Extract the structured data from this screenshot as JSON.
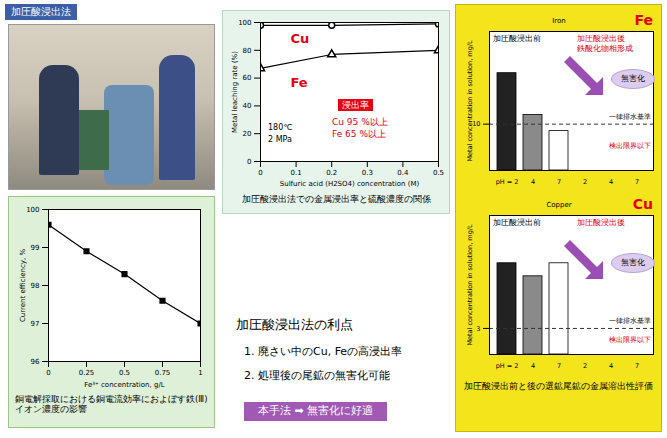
{
  "slide": {
    "title": "加圧酸浸出法",
    "advantages": {
      "title": "加圧酸浸出法の利点",
      "items": [
        "1. 廃さい中のCu, Feの高浸出率",
        "2. 処理後の尾鉱の無害化可能"
      ],
      "conclusion": "本手法 ➡ 無害化に好適"
    },
    "right_caption": "加圧酸浸出前と後の選鉱尾鉱の金属溶出性評価"
  },
  "chart_data": [
    {
      "type": "line",
      "caption": "加圧酸浸出法での金属浸出率と硫酸濃度の関係",
      "x_label": "Sulfuric acid (H2SO4) concentration (M)",
      "y_label": "Metal leaching rate (%)",
      "x": [
        0,
        0.2,
        0.5
      ],
      "series": [
        {
          "name": "Cu",
          "color": "#000000",
          "marker": "circle",
          "values": [
            98,
            98,
            99
          ]
        },
        {
          "name": "Fe",
          "color": "#000000",
          "marker": "triangle",
          "values": [
            67,
            77,
            80
          ]
        }
      ],
      "xlim": [
        0,
        0.5
      ],
      "xticks": [
        0,
        0.1,
        0.2,
        0.3,
        0.4,
        0.5
      ],
      "ylim": [
        0,
        100
      ],
      "yticks": [
        0,
        20,
        40,
        60,
        80,
        100
      ],
      "annotations": [
        "180℃",
        "2 MPa"
      ],
      "highlight": {
        "title": "浸出率",
        "lines": [
          "Cu 95 %以上",
          "Fe 65 %以上"
        ]
      }
    },
    {
      "type": "line",
      "caption": "銅電解採取における銅電流効率におよぼす鉄(Ⅲ)イオン濃度の影響",
      "x_label": "Fe³⁺ concentration, g/L",
      "y_label": "Current efficiency, %",
      "x": [
        0,
        0.25,
        0.5,
        0.75,
        1
      ],
      "values": [
        99.6,
        98.9,
        98.3,
        97.6,
        97.0
      ],
      "color": "#000000",
      "marker": "square",
      "xlim": [
        0,
        1
      ],
      "xticks": [
        0,
        0.25,
        0.5,
        0.75,
        1
      ],
      "ylim": [
        96,
        100
      ],
      "yticks": [
        96,
        97,
        98,
        99,
        100
      ]
    },
    {
      "type": "bar",
      "title": "Iron",
      "series_label": "Fe",
      "y_label": "Metal concentration in solution, mg/L",
      "categories": [
        "pH = 2",
        "4",
        "7",
        "2",
        "4",
        "7"
      ],
      "values": [
        21,
        12,
        8.5,
        0,
        0,
        0
      ],
      "colors": [
        "#222222",
        "#8a8a8a",
        "#ffffff",
        "#222222",
        "#8a8a8a",
        "#ffffff"
      ],
      "ylim": [
        0,
        30
      ],
      "yticks": [
        10
      ],
      "reference_line": {
        "value": 10,
        "label": "一律排水基準"
      },
      "annotations": {
        "before": "加圧酸浸出前",
        "after": "加圧酸浸出後",
        "after_note": "鉄酸化物相形成",
        "result": "無害化",
        "below_limit": "検出限界以下"
      }
    },
    {
      "type": "bar",
      "title": "Copper",
      "series_label": "Cu",
      "y_label": "Metal concentration in solution, mg/L",
      "categories": [
        "pH = 2",
        "4",
        "7",
        "2",
        "4",
        "7"
      ],
      "values": [
        10.5,
        9,
        10.5,
        0,
        0,
        0
      ],
      "colors": [
        "#222222",
        "#8a8a8a",
        "#ffffff",
        "#222222",
        "#8a8a8a",
        "#ffffff"
      ],
      "ylim": [
        0,
        16
      ],
      "yticks": [
        3
      ],
      "reference_line": {
        "value": 3,
        "label": "一律排水基準"
      },
      "annotations": {
        "before": "加圧酸浸出前",
        "after": "加圧酸浸出後",
        "result": "無害化",
        "below_limit": "検出限界以下"
      }
    }
  ]
}
